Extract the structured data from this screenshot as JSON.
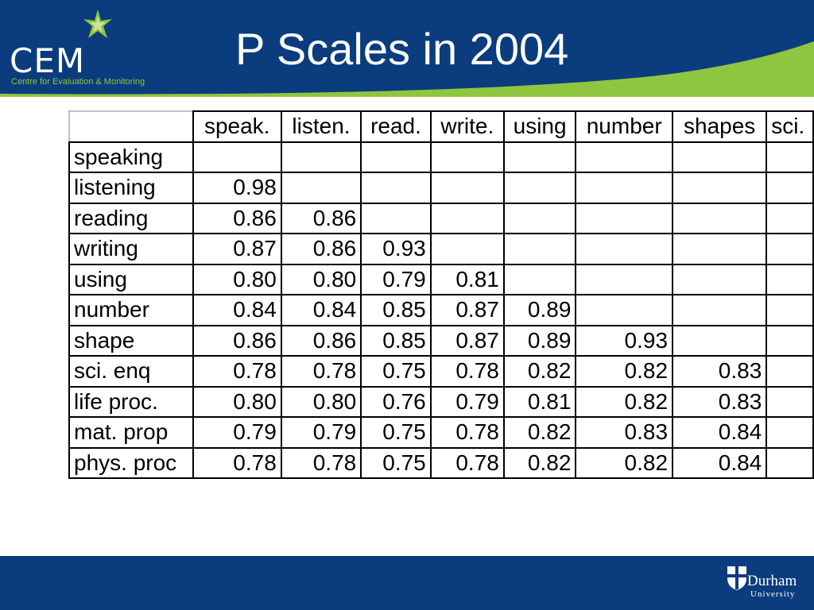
{
  "colors": {
    "header_blue": "#0b3c7d",
    "accent_green": "#8fc63f",
    "text": "#000000",
    "background": "#ffffff"
  },
  "logo": {
    "text": "CEM",
    "subtitle": "Centre for Evaluation & Monitoring",
    "icon": "star-icon"
  },
  "slide": {
    "title": "P Scales in 2004"
  },
  "table": {
    "headers": [
      "",
      "speak.",
      "listen.",
      "read.",
      "write.",
      "using",
      "number",
      "shapes",
      "sci."
    ],
    "rows": [
      {
        "label": "speaking",
        "values": [
          "",
          "",
          "",
          "",
          "",
          "",
          "",
          ""
        ]
      },
      {
        "label": "listening",
        "values": [
          "0.98",
          "",
          "",
          "",
          "",
          "",
          "",
          ""
        ]
      },
      {
        "label": "reading",
        "values": [
          "0.86",
          "0.86",
          "",
          "",
          "",
          "",
          "",
          ""
        ]
      },
      {
        "label": "writing",
        "values": [
          "0.87",
          "0.86",
          "0.93",
          "",
          "",
          "",
          "",
          ""
        ]
      },
      {
        "label": "using",
        "values": [
          "0.80",
          "0.80",
          "0.79",
          "0.81",
          "",
          "",
          "",
          ""
        ]
      },
      {
        "label": "number",
        "values": [
          "0.84",
          "0.84",
          "0.85",
          "0.87",
          "0.89",
          "",
          "",
          ""
        ]
      },
      {
        "label": "shape",
        "values": [
          "0.86",
          "0.86",
          "0.85",
          "0.87",
          "0.89",
          "0.93",
          "",
          ""
        ]
      },
      {
        "label": "sci. enq",
        "values": [
          "0.78",
          "0.78",
          "0.75",
          "0.78",
          "0.82",
          "0.82",
          "0.83",
          ""
        ]
      },
      {
        "label": "life proc.",
        "values": [
          "0.80",
          "0.80",
          "0.76",
          "0.79",
          "0.81",
          "0.82",
          "0.83",
          ""
        ]
      },
      {
        "label": "mat. prop",
        "values": [
          "0.79",
          "0.79",
          "0.75",
          "0.78",
          "0.82",
          "0.83",
          "0.84",
          ""
        ]
      },
      {
        "label": "phys. proc",
        "values": [
          "0.78",
          "0.78",
          "0.75",
          "0.78",
          "0.82",
          "0.82",
          "0.84",
          ""
        ]
      }
    ]
  },
  "footer": {
    "university_name": "Durham",
    "university_sub": "University",
    "icon": "shield-icon"
  }
}
